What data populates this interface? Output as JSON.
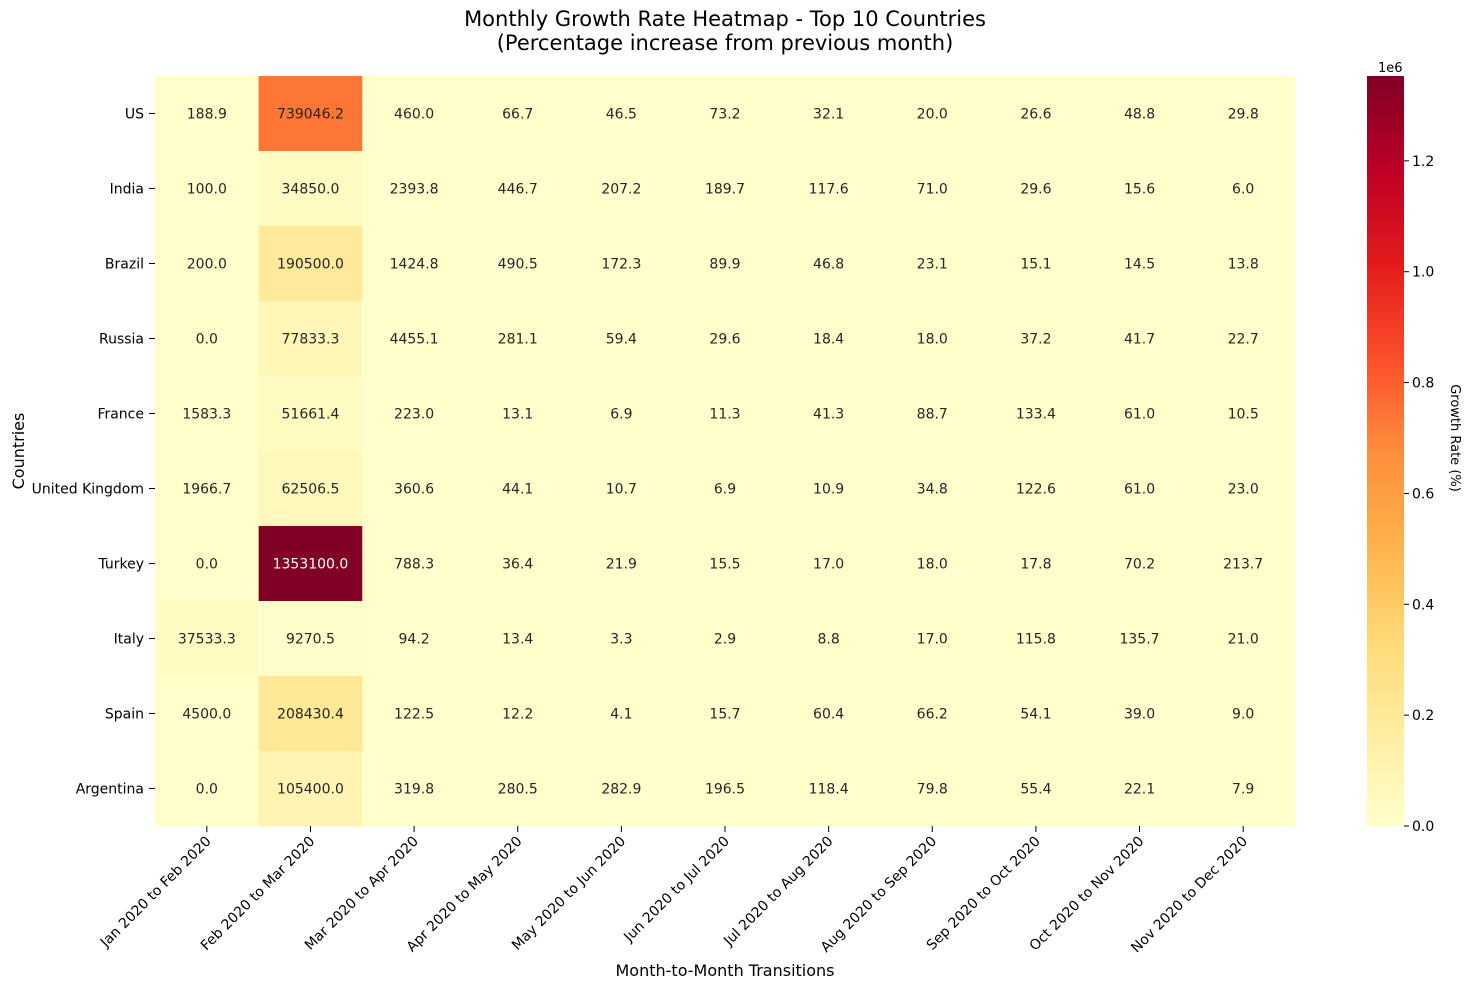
{
  "chart_data": {
    "type": "heatmap",
    "title": "Monthly Growth Rate Heatmap - Top 10 Countries",
    "subtitle": "(Percentage increase from previous month)",
    "xlabel": "Month-to-Month Transitions",
    "ylabel": "Countries",
    "x": [
      "Jan 2020 to Feb 2020",
      "Feb 2020 to Mar 2020",
      "Mar 2020 to Apr 2020",
      "Apr 2020 to May 2020",
      "May 2020 to Jun 2020",
      "Jun 2020 to Jul 2020",
      "Jul 2020 to Aug 2020",
      "Aug 2020 to Sep 2020",
      "Sep 2020 to Oct 2020",
      "Oct 2020 to Nov 2020",
      "Nov 2020 to Dec 2020"
    ],
    "y": [
      "US",
      "India",
      "Brazil",
      "Russia",
      "France",
      "United Kingdom",
      "Turkey",
      "Italy",
      "Spain",
      "Argentina"
    ],
    "values": [
      [
        188.9,
        739046.2,
        460.0,
        66.7,
        46.5,
        73.2,
        32.1,
        20.0,
        26.6,
        48.8,
        29.8
      ],
      [
        100.0,
        34850.0,
        2393.8,
        446.7,
        207.2,
        189.7,
        117.6,
        71.0,
        29.6,
        15.6,
        6.0
      ],
      [
        200.0,
        190500.0,
        1424.8,
        490.5,
        172.3,
        89.9,
        46.8,
        23.1,
        15.1,
        14.5,
        13.8
      ],
      [
        0.0,
        77833.3,
        4455.1,
        281.1,
        59.4,
        29.6,
        18.4,
        18.0,
        37.2,
        41.7,
        22.7
      ],
      [
        1583.3,
        51661.4,
        223.0,
        13.1,
        6.9,
        11.3,
        41.3,
        88.7,
        133.4,
        61.0,
        10.5
      ],
      [
        1966.7,
        62506.5,
        360.6,
        44.1,
        10.7,
        6.9,
        10.9,
        34.8,
        122.6,
        61.0,
        23.0
      ],
      [
        0.0,
        1353100.0,
        788.3,
        36.4,
        21.9,
        15.5,
        17.0,
        18.0,
        17.8,
        70.2,
        213.7
      ],
      [
        37533.3,
        9270.5,
        94.2,
        13.4,
        3.3,
        2.9,
        8.8,
        17.0,
        115.8,
        135.7,
        21.0
      ],
      [
        4500.0,
        208430.4,
        122.5,
        12.2,
        4.1,
        15.7,
        60.4,
        66.2,
        54.1,
        39.0,
        9.0
      ],
      [
        0.0,
        105400.0,
        319.8,
        280.5,
        282.9,
        196.5,
        118.4,
        79.8,
        55.4,
        22.1,
        7.9
      ]
    ],
    "colormap": "YlOrRd",
    "colorbar": {
      "label": "Growth Rate (%)",
      "ticks": [
        "0.0",
        "0.2",
        "0.4",
        "0.6",
        "0.8",
        "1.0",
        "1.2"
      ],
      "tick_values": [
        0,
        0.2,
        0.4,
        0.6,
        0.8,
        1.0,
        1.2
      ],
      "multiplier": "1e6",
      "range": [
        0,
        1.3531
      ]
    },
    "value_format": "one decimal"
  }
}
